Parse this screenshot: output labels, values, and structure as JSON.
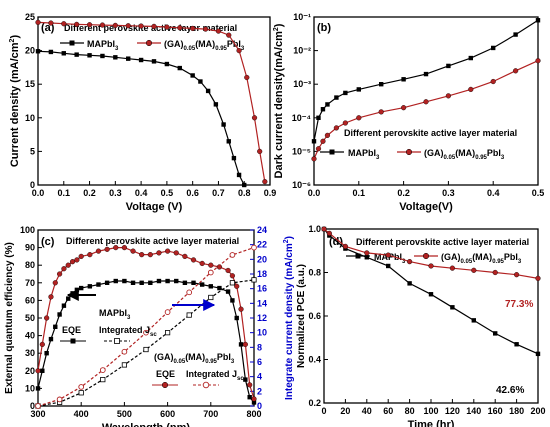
{
  "figure": {
    "background": "#ffffff",
    "black": "#000000",
    "red": "#b22222",
    "blue": "#0000cc"
  },
  "chart_data": [
    {
      "panel": "(a)",
      "type": "line",
      "title": "Different perovskite active layer material",
      "xlabel": "Voltage (V)",
      "ylabel": "Current density (mA/cm²)",
      "xlim": [
        0.0,
        0.9
      ],
      "ylim": [
        0,
        25
      ],
      "xticks": [
        "0.0",
        "0.1",
        "0.2",
        "0.3",
        "0.4",
        "0.5",
        "0.6",
        "0.7",
        "0.8",
        "0.9"
      ],
      "yticks": [
        "0",
        "5",
        "10",
        "15",
        "20",
        "25"
      ],
      "legend_position": "top",
      "series": [
        {
          "name": "MAPbI3",
          "color": "#000000",
          "marker": "square",
          "x": [
            0.0,
            0.05,
            0.1,
            0.15,
            0.2,
            0.25,
            0.3,
            0.35,
            0.4,
            0.45,
            0.5,
            0.55,
            0.6,
            0.63,
            0.66,
            0.69,
            0.72,
            0.74,
            0.76,
            0.78,
            0.8
          ],
          "y": [
            19.9,
            19.8,
            19.6,
            19.4,
            19.3,
            19.2,
            19.0,
            18.8,
            18.6,
            18.4,
            18.0,
            17.4,
            16.3,
            15.4,
            14.0,
            12.0,
            9.0,
            6.5,
            4.0,
            1.5,
            0.0
          ]
        },
        {
          "name": "(GA)0.05(MA)0.95PbI3",
          "color": "#b22222",
          "marker": "circle",
          "x": [
            0.0,
            0.05,
            0.1,
            0.15,
            0.2,
            0.25,
            0.3,
            0.35,
            0.4,
            0.45,
            0.5,
            0.55,
            0.6,
            0.65,
            0.7,
            0.74,
            0.78,
            0.81,
            0.84,
            0.86,
            0.88
          ],
          "y": [
            24.2,
            24.1,
            24.0,
            23.9,
            23.85,
            23.8,
            23.75,
            23.7,
            23.65,
            23.6,
            23.5,
            23.4,
            23.3,
            23.2,
            22.9,
            22.3,
            20.0,
            16.0,
            10.0,
            5.0,
            0.5
          ]
        }
      ]
    },
    {
      "panel": "(b)",
      "type": "line",
      "title": "Different perovskite active layer material",
      "xlabel": "Voltage(V)",
      "ylabel": "Dark current density(mA/cm²)",
      "xlim": [
        0.0,
        0.5
      ],
      "ylim": [
        1e-06,
        0.1
      ],
      "yscale": "log",
      "xticks": [
        "0.0",
        "0.1",
        "0.2",
        "0.3",
        "0.4",
        "0.5"
      ],
      "yticks": [
        "10⁻⁶",
        "10⁻⁵",
        "10⁻⁴",
        "10⁻³",
        "10⁻²",
        "10⁻¹"
      ],
      "legend_position": "lower right",
      "series": [
        {
          "name": "MAPbI3",
          "color": "#000000",
          "marker": "square",
          "x": [
            0.0,
            0.01,
            0.02,
            0.03,
            0.05,
            0.07,
            0.1,
            0.15,
            0.2,
            0.25,
            0.3,
            0.35,
            0.4,
            0.45,
            0.5
          ],
          "y": [
            2e-05,
            0.0001,
            0.00018,
            0.00025,
            0.0004,
            0.00055,
            0.0007,
            0.001,
            0.0014,
            0.002,
            0.0035,
            0.006,
            0.012,
            0.03,
            0.08
          ]
        },
        {
          "name": "(GA)0.05(MA)0.95PbI3",
          "color": "#b22222",
          "marker": "circle",
          "x": [
            0.0,
            0.01,
            0.02,
            0.03,
            0.05,
            0.07,
            0.1,
            0.15,
            0.2,
            0.25,
            0.3,
            0.35,
            0.4,
            0.45,
            0.5
          ],
          "y": [
            6e-06,
            1.2e-05,
            2e-05,
            3e-05,
            5e-05,
            7e-05,
            0.0001,
            0.00015,
            0.0002,
            0.0003,
            0.00045,
            0.0007,
            0.0012,
            0.0025,
            0.005
          ]
        }
      ]
    },
    {
      "panel": "(c)",
      "type": "line",
      "title": "Different perovskite active layer material",
      "xlabel": "Wavelength (nm)",
      "ylabel": "External quantum efficiency (%)",
      "y2label": "Integrate current density (mA/cm²)",
      "xlim": [
        300,
        800
      ],
      "ylim": [
        0,
        100
      ],
      "y2lim": [
        0,
        24
      ],
      "xticks": [
        "300",
        "400",
        "500",
        "600",
        "700",
        "800"
      ],
      "yticks": [
        "0",
        "10",
        "20",
        "30",
        "40",
        "50",
        "60",
        "70",
        "80",
        "90",
        "100"
      ],
      "y2ticks": [
        "0",
        "2",
        "4",
        "6",
        "8",
        "10",
        "12",
        "14",
        "16",
        "18",
        "20",
        "22",
        "24"
      ],
      "legend": {
        "series_a": "MAPbI3",
        "series_b": "(GA)0.05(MA)0.95PbI3",
        "eqe_label": "EQE",
        "integrated_label": "Integrated J",
        "integrated_sub": "sc"
      },
      "series": [
        {
          "name": "MAPbI3 EQE",
          "color": "#000000",
          "marker": "square",
          "axis": "left",
          "x": [
            300,
            310,
            320,
            330,
            340,
            350,
            360,
            370,
            380,
            390,
            400,
            420,
            440,
            460,
            480,
            500,
            520,
            540,
            560,
            580,
            600,
            620,
            640,
            660,
            680,
            700,
            720,
            740,
            750,
            760,
            770,
            780,
            790,
            800
          ],
          "y": [
            10,
            20,
            30,
            38,
            45,
            52,
            57,
            61,
            64,
            66,
            67,
            68,
            69,
            70,
            71,
            71,
            70,
            70,
            70,
            71,
            71,
            71,
            70,
            70,
            69,
            68,
            67,
            65,
            60,
            50,
            35,
            15,
            5,
            2
          ]
        },
        {
          "name": "(GA)0.05(MA)0.95PbI3 EQE",
          "color": "#b22222",
          "marker": "circle",
          "axis": "left",
          "x": [
            300,
            310,
            320,
            330,
            340,
            350,
            360,
            370,
            380,
            390,
            400,
            420,
            440,
            460,
            480,
            500,
            520,
            540,
            560,
            580,
            600,
            620,
            640,
            660,
            680,
            700,
            720,
            740,
            750,
            760,
            770,
            780,
            790,
            800
          ],
          "y": [
            20,
            35,
            50,
            62,
            70,
            75,
            78,
            80,
            82,
            83,
            85,
            86,
            88,
            89,
            90,
            90,
            88,
            86,
            86,
            87,
            88,
            87,
            85,
            83,
            81,
            80,
            79,
            77,
            74,
            68,
            55,
            35,
            12,
            4
          ]
        },
        {
          "name": "MAPbI3 Integrated Jsc",
          "color": "#000000",
          "marker": "open-square",
          "axis": "right",
          "x": [
            300,
            350,
            400,
            450,
            500,
            550,
            600,
            650,
            700,
            750,
            800
          ],
          "y": [
            0,
            0.5,
            1.8,
            3.6,
            5.6,
            7.7,
            10.0,
            12.4,
            14.8,
            16.8,
            17.2
          ]
        },
        {
          "name": "(GA)0.05(MA)0.95PbI3 Integrated Jsc",
          "color": "#b22222",
          "marker": "open-circle",
          "axis": "right",
          "x": [
            300,
            350,
            400,
            450,
            500,
            550,
            600,
            650,
            700,
            750,
            800
          ],
          "y": [
            0,
            0.9,
            2.6,
            4.9,
            7.4,
            10.0,
            12.8,
            15.5,
            18.2,
            20.6,
            21.6
          ]
        }
      ]
    },
    {
      "panel": "(d)",
      "type": "line",
      "title": "Different perovskite active layer material",
      "xlabel": "Time (hr)",
      "ylabel": "Normalized PCE (a.u.)",
      "xlim": [
        0,
        200
      ],
      "ylim": [
        0.2,
        1.0
      ],
      "xticks": [
        "0",
        "20",
        "40",
        "60",
        "80",
        "100",
        "120",
        "140",
        "160",
        "180",
        "200"
      ],
      "yticks": [
        "0.2",
        "0.4",
        "0.6",
        "0.8",
        "1.0"
      ],
      "legend_position": "top",
      "annotations": [
        "77.3%",
        "42.6%"
      ],
      "series": [
        {
          "name": "MAPbI3",
          "color": "#000000",
          "marker": "square",
          "x": [
            0,
            5,
            20,
            40,
            60,
            80,
            100,
            120,
            140,
            160,
            180,
            200
          ],
          "y": [
            1.0,
            0.97,
            0.91,
            0.87,
            0.83,
            0.75,
            0.7,
            0.64,
            0.58,
            0.52,
            0.47,
            0.426
          ]
        },
        {
          "name": "(GA)0.05(MA)0.95PbI3",
          "color": "#b22222",
          "marker": "circle",
          "x": [
            0,
            5,
            20,
            40,
            60,
            80,
            100,
            120,
            140,
            160,
            180,
            200
          ],
          "y": [
            1.0,
            0.98,
            0.92,
            0.89,
            0.88,
            0.85,
            0.83,
            0.82,
            0.81,
            0.8,
            0.79,
            0.773
          ]
        }
      ]
    }
  ]
}
